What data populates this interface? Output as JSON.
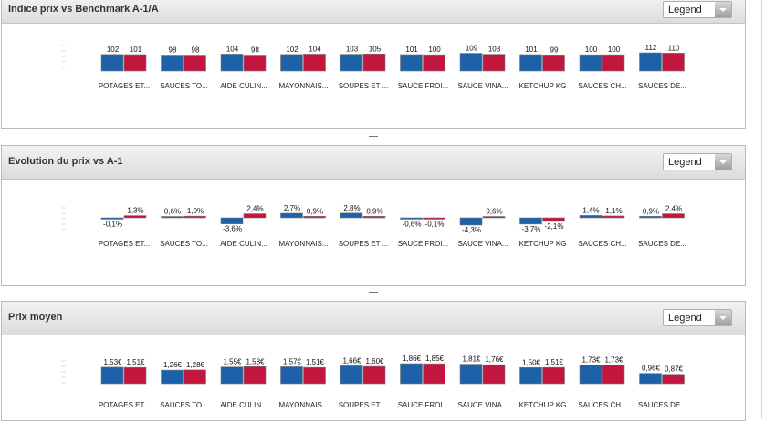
{
  "legend_label": "Legend",
  "categories": [
    "POTAGES ET...",
    "SAUCES TO...",
    "AIDE CULIN...",
    "MAYONNAIS...",
    "SOUPES ET ...",
    "SAUCE FROI...",
    "SAUCE VINA...",
    "KETCHUP KG",
    "SAUCES CH...",
    "SAUCES DE..."
  ],
  "colors": {
    "series_a": "#1d62a8",
    "series_b": "#c1173f"
  },
  "panels": [
    {
      "title": "Indice prix vs Benchmark A-1/A",
      "chart_data": {
        "type": "bar",
        "categories": [
          "POTAGES ET...",
          "SAUCES TO...",
          "AIDE CULIN...",
          "MAYONNAIS...",
          "SOUPES ET ...",
          "SAUCE FROI...",
          "SAUCE VINA...",
          "KETCHUP KG",
          "SAUCES CH...",
          "SAUCES DE..."
        ],
        "series": [
          {
            "values": [
              102,
              98,
              104,
              102,
              103,
              101,
              109,
              101,
              100,
              112
            ],
            "labels": [
              "102",
              "98",
              "104",
              "102",
              "103",
              "101",
              "109",
              "101",
              "100",
              "112"
            ]
          },
          {
            "values": [
              101,
              98,
              98,
              104,
              105,
              100,
              103,
              99,
              100,
              110
            ],
            "labels": [
              "101",
              "98",
              "98",
              "104",
              "105",
              "100",
              "103",
              "99",
              "100",
              "110"
            ]
          }
        ],
        "ylim": [
          0,
          112
        ]
      }
    },
    {
      "title": "Evolution du prix vs A-1",
      "chart_data": {
        "type": "bar",
        "categories": [
          "POTAGES ET...",
          "SAUCES TO...",
          "AIDE CULIN...",
          "MAYONNAIS...",
          "SOUPES ET ...",
          "SAUCE FROI...",
          "SAUCE VINA...",
          "KETCHUP KG",
          "SAUCES CH...",
          "SAUCES DE..."
        ],
        "series": [
          {
            "values": [
              -0.1,
              0.6,
              -3.6,
              2.7,
              2.8,
              -0.6,
              -4.3,
              -3.7,
              1.4,
              0.9
            ],
            "labels": [
              "-0,1%",
              "0,6%",
              "-3,6%",
              "2,7%",
              "2,8%",
              "-0,6%",
              "-4,3%",
              "-3,7%",
              "1,4%",
              "0,9%"
            ]
          },
          {
            "values": [
              1.3,
              1.0,
              2.4,
              0.9,
              0.9,
              -0.1,
              0.6,
              -2.1,
              1.1,
              2.4
            ],
            "labels": [
              "1,3%",
              "1,0%",
              "2,4%",
              "0,9%",
              "0,9%",
              "-0,1%",
              "0,6%",
              "-2,1%",
              "1,1%",
              "2,4%"
            ]
          }
        ],
        "ylim": [
          -4.3,
          2.8
        ]
      }
    },
    {
      "title": "Prix moyen",
      "chart_data": {
        "type": "bar",
        "categories": [
          "POTAGES ET...",
          "SAUCES TO...",
          "AIDE CULIN...",
          "MAYONNAIS...",
          "SOUPES ET ...",
          "SAUCE FROI...",
          "SAUCE VINA...",
          "KETCHUP KG",
          "SAUCES CH...",
          "SAUCES DE..."
        ],
        "series": [
          {
            "values": [
              1.53,
              1.26,
              1.55,
              1.57,
              1.66,
              1.86,
              1.81,
              1.5,
              1.73,
              0.96
            ],
            "labels": [
              "1,53€",
              "1,26€",
              "1,55€",
              "1,57€",
              "1,66€",
              "1,86€",
              "1,81€",
              "1,50€",
              "1,73€",
              "0,96€"
            ]
          },
          {
            "values": [
              1.51,
              1.28,
              1.58,
              1.51,
              1.6,
              1.85,
              1.76,
              1.51,
              1.73,
              0.87
            ],
            "labels": [
              "1,51€",
              "1,28€",
              "1,58€",
              "1,51€",
              "1,60€",
              "1,85€",
              "1,76€",
              "1,51€",
              "1,73€",
              "0,87€"
            ]
          }
        ],
        "ylim": [
          0,
          1.86
        ]
      }
    }
  ]
}
